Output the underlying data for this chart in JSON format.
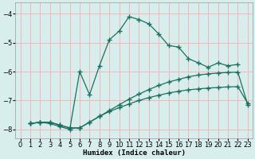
{
  "background_color": "#d8eeed",
  "grid_color": "#f0b8b8",
  "line_color": "#1a7060",
  "xlabel": "Humidex (Indice chaleur)",
  "ylim": [
    -8.3,
    -3.6
  ],
  "xlim": [
    -0.5,
    23.5
  ],
  "yticks": [
    -8,
    -7,
    -6,
    -5,
    -4
  ],
  "xticks": [
    0,
    1,
    2,
    3,
    4,
    5,
    6,
    7,
    8,
    9,
    10,
    11,
    12,
    13,
    14,
    15,
    16,
    17,
    18,
    19,
    20,
    21,
    22,
    23
  ],
  "line1_x": [
    1,
    2,
    3,
    4,
    5,
    6,
    7,
    8,
    9,
    10,
    11,
    12,
    13,
    14,
    15,
    16,
    17,
    18,
    19,
    20,
    21,
    22
  ],
  "line1_y": [
    -7.8,
    -7.75,
    -7.8,
    -7.9,
    -8.0,
    -6.0,
    -6.8,
    -5.8,
    -4.9,
    -4.6,
    -4.1,
    -4.2,
    -4.35,
    -4.7,
    -5.1,
    -5.15,
    -5.55,
    -5.7,
    -5.85,
    -5.7,
    -5.8,
    -5.75
  ],
  "line2_x": [
    1,
    2,
    3,
    4,
    5,
    6,
    7,
    8,
    9,
    10,
    11,
    12,
    13,
    14,
    15,
    16,
    17,
    18,
    19,
    20,
    21,
    22,
    23
  ],
  "line2_y": [
    -7.8,
    -7.75,
    -7.75,
    -7.85,
    -7.95,
    -7.95,
    -7.75,
    -7.55,
    -7.35,
    -7.15,
    -6.95,
    -6.78,
    -6.62,
    -6.48,
    -6.36,
    -6.27,
    -6.18,
    -6.12,
    -6.08,
    -6.05,
    -6.03,
    -6.02,
    -7.15
  ],
  "line3_x": [
    1,
    2,
    3,
    4,
    5,
    6,
    7,
    8,
    9,
    10,
    11,
    12,
    13,
    14,
    15,
    16,
    17,
    18,
    19,
    20,
    21,
    22,
    23
  ],
  "line3_y": [
    -7.8,
    -7.75,
    -7.75,
    -7.85,
    -7.95,
    -7.95,
    -7.75,
    -7.55,
    -7.38,
    -7.25,
    -7.12,
    -7.0,
    -6.9,
    -6.82,
    -6.74,
    -6.68,
    -6.63,
    -6.6,
    -6.57,
    -6.55,
    -6.53,
    -6.52,
    -7.1
  ]
}
